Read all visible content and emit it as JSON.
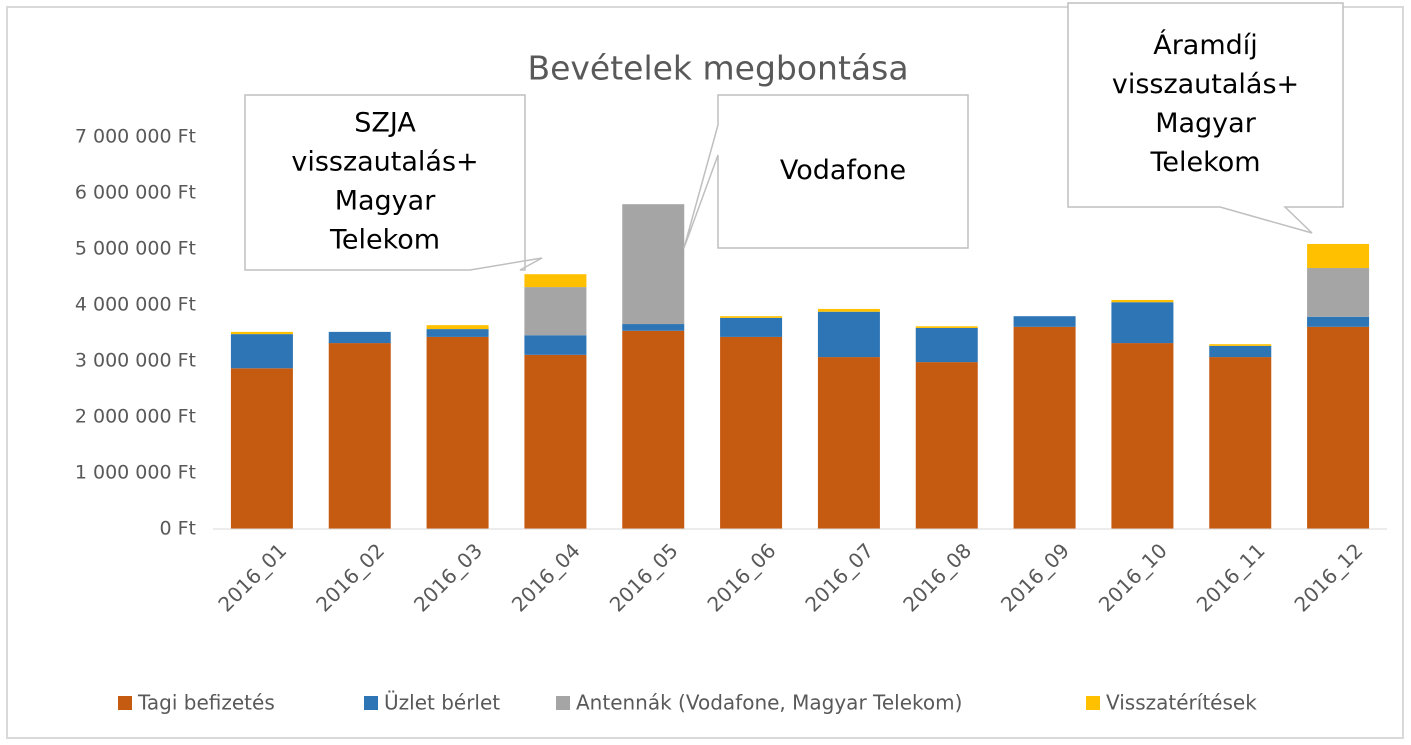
{
  "chart_data": {
    "type": "bar",
    "stacked": true,
    "title": "Bevételek megbontása",
    "categories": [
      "2016_01",
      "2016_02",
      "2016_03",
      "2016_04",
      "2016_05",
      "2016_06",
      "2016_07",
      "2016_08",
      "2016_09",
      "2016_10",
      "2016_11",
      "2016_12"
    ],
    "series": [
      {
        "name": "Tagi befizetés",
        "color": "#c55a11",
        "values": [
          2870000,
          3320000,
          3430000,
          3110000,
          3540000,
          3430000,
          3070000,
          2980000,
          3610000,
          3320000,
          3070000,
          3610000
        ]
      },
      {
        "name": "Üzlet bérlet",
        "color": "#2e75b6",
        "values": [
          610000,
          200000,
          140000,
          350000,
          120000,
          340000,
          810000,
          610000,
          190000,
          730000,
          200000,
          180000
        ]
      },
      {
        "name": "Antennák (Vodafone, Magyar Telekom)",
        "color": "#a5a5a5",
        "values": [
          0,
          0,
          0,
          860000,
          2140000,
          0,
          0,
          0,
          0,
          0,
          0,
          870000
        ]
      },
      {
        "name": "Visszatérítések",
        "color": "#ffc000",
        "values": [
          40000,
          0,
          70000,
          230000,
          0,
          30000,
          50000,
          30000,
          0,
          40000,
          30000,
          430000
        ]
      }
    ],
    "ylim": [
      0,
      7000000
    ],
    "yticks": [
      {
        "value": 0,
        "label": "0 Ft"
      },
      {
        "value": 1000000,
        "label": "1 000 000 Ft"
      },
      {
        "value": 2000000,
        "label": "2 000 000 Ft"
      },
      {
        "value": 3000000,
        "label": "3 000 000 Ft"
      },
      {
        "value": 4000000,
        "label": "4 000 000 Ft"
      },
      {
        "value": 5000000,
        "label": "5 000 000 Ft"
      },
      {
        "value": 6000000,
        "label": "6 000 000 Ft"
      },
      {
        "value": 7000000,
        "label": "7 000 000 Ft"
      }
    ],
    "grid": false,
    "legend": "bottom",
    "annotations": [
      {
        "lines": [
          "SZJA",
          "visszautalás+",
          "Magyar",
          "Telekom"
        ]
      },
      {
        "lines": [
          "Vodafone"
        ]
      },
      {
        "lines": [
          "Áramdíj",
          "visszautalás+",
          "Magyar",
          "Telekom"
        ]
      }
    ]
  }
}
